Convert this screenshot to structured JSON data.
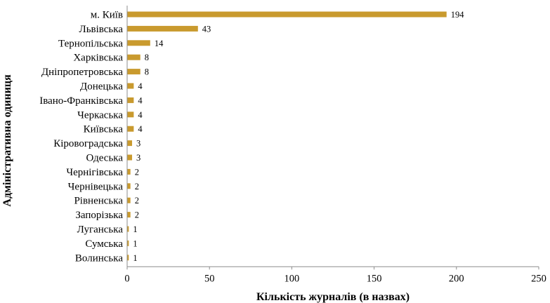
{
  "chart_data": {
    "type": "bar",
    "orientation": "horizontal",
    "categories": [
      "м. Київ",
      "Львівська",
      "Тернопільська",
      "Харківська",
      "Дніпропетровська",
      "Донецька",
      "Івано-Франківська",
      "Черкаська",
      "Київська",
      "Кіровоградська",
      "Одеська",
      "Чернігівська",
      "Чернівецька",
      "Рівненська",
      "Запорізька",
      "Луганська",
      "Сумська",
      "Волинська"
    ],
    "values": [
      194,
      43,
      14,
      8,
      8,
      4,
      4,
      4,
      4,
      3,
      3,
      2,
      2,
      2,
      2,
      1,
      1,
      1
    ],
    "xlabel": "Кількість журналів (в назвах)",
    "ylabel": "Адміністративна одиниця",
    "xlim": [
      0,
      250
    ],
    "xticks": [
      "0",
      "50",
      "100",
      "150",
      "200",
      "250"
    ],
    "grid": false,
    "legend": "none",
    "bar_color": "#c99a2e",
    "data_labels": true
  }
}
